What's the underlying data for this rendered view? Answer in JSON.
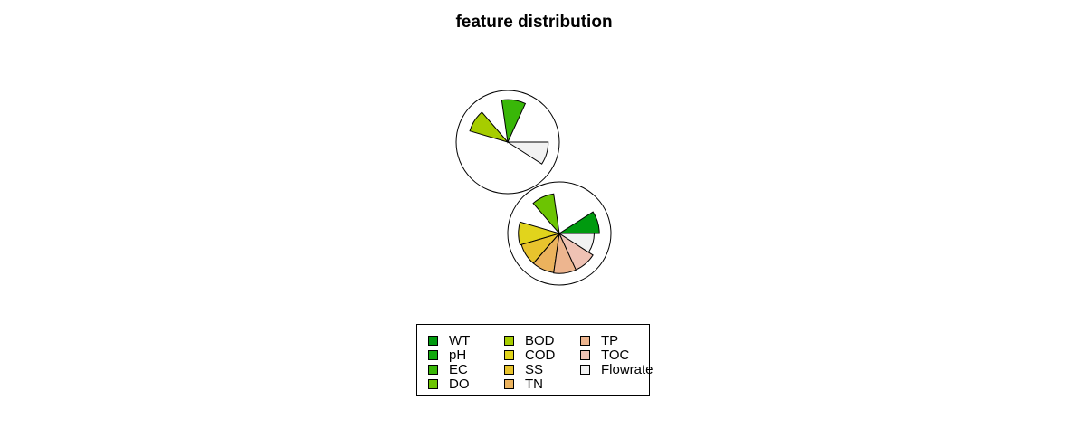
{
  "chart_data": {
    "type": "segment",
    "title": "feature distribution",
    "features": [
      "WT",
      "pH",
      "EC",
      "DO",
      "BOD",
      "COD",
      "SS",
      "TN",
      "TP",
      "TOC",
      "Flowrate"
    ],
    "colors": {
      "WT": "#009a0f",
      "pH": "#11a80d",
      "EC": "#39b708",
      "DO": "#6cc402",
      "BOD": "#a6cd00",
      "COD": "#e1d41c",
      "SS": "#e8c32d",
      "TN": "#ebb25d",
      "TP": "#edb58f",
      "TOC": "#efc2b4",
      "Flowrate": "#f2f2f2"
    },
    "series": [
      {
        "values": {
          "WT": 0,
          "pH": 0,
          "EC": 0.9,
          "DO": 0,
          "BOD": 0.84,
          "COD": 0,
          "SS": 0,
          "TN": 0,
          "TP": 0,
          "TOC": 0,
          "Flowrate": 0.86
        }
      },
      {
        "values": {
          "WT": 0.85,
          "pH": 0,
          "EC": 0,
          "DO": 0.85,
          "BOD": 0,
          "COD": 0.87,
          "SS": 0.84,
          "TN": 0.84,
          "TP": 0.85,
          "TOC": 0.85,
          "Flowrate": 0.74
        }
      }
    ]
  },
  "legend": {
    "items": [
      "WT",
      "pH",
      "EC",
      "DO",
      "BOD",
      "COD",
      "SS",
      "TN",
      "TP",
      "TOC",
      "Flowrate"
    ]
  }
}
